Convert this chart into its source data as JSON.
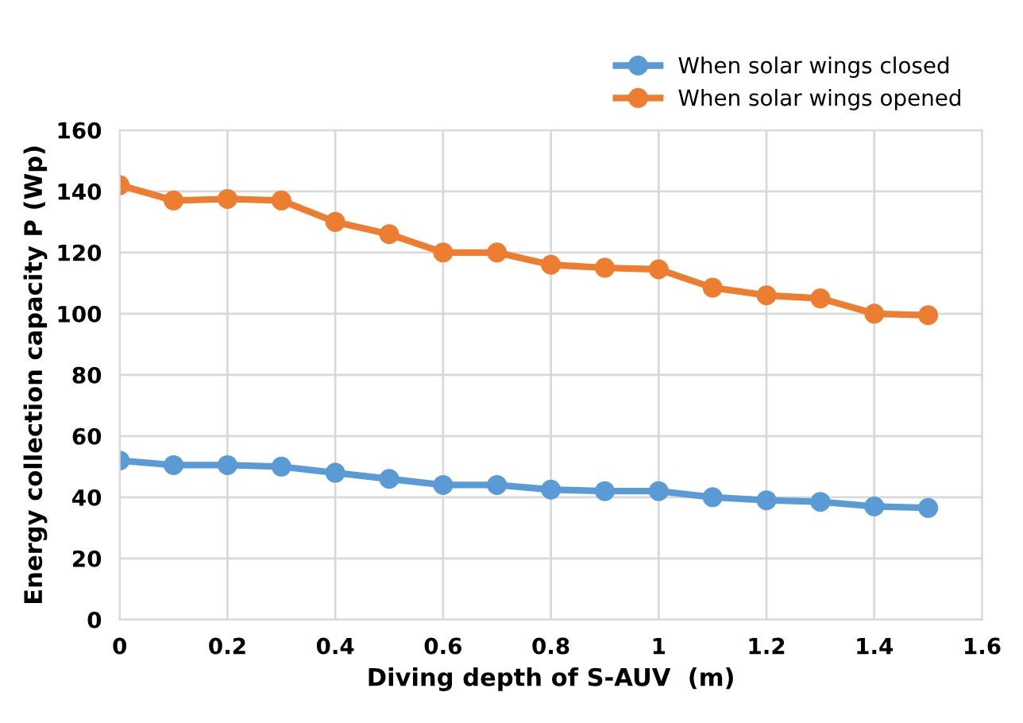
{
  "chart_data": {
    "type": "line",
    "xlabel": "Diving depth of S-AUV  (m)",
    "ylabel": "Energy collection capacity P (Wp)",
    "x": [
      0,
      0.1,
      0.2,
      0.3,
      0.4,
      0.5,
      0.6,
      0.7,
      0.8,
      0.9,
      1.0,
      1.1,
      1.2,
      1.3,
      1.4,
      1.5
    ],
    "series": [
      {
        "name": "When solar wings closed",
        "color": "#5b9bd5",
        "values": [
          52,
          50.5,
          50.5,
          50,
          48,
          46,
          44,
          44,
          42.5,
          42,
          42,
          40,
          39,
          38.5,
          37,
          36.5
        ]
      },
      {
        "name": "When solar wings opened",
        "color": "#ed7d31",
        "values": [
          142,
          137,
          137.5,
          137,
          130,
          126,
          120,
          120,
          116,
          115,
          114.5,
          108.5,
          106,
          105,
          100,
          99.5
        ]
      }
    ],
    "xlim": [
      0,
      1.6
    ],
    "xticks": [
      0,
      0.2,
      0.4,
      0.6,
      0.8,
      1,
      1.2,
      1.4,
      1.6
    ],
    "ylim": [
      0,
      160
    ],
    "yticks": [
      0,
      20,
      40,
      60,
      80,
      100,
      120,
      140,
      160
    ],
    "grid": true,
    "legend": "top right",
    "marker": "circle",
    "line_style": "solid"
  }
}
